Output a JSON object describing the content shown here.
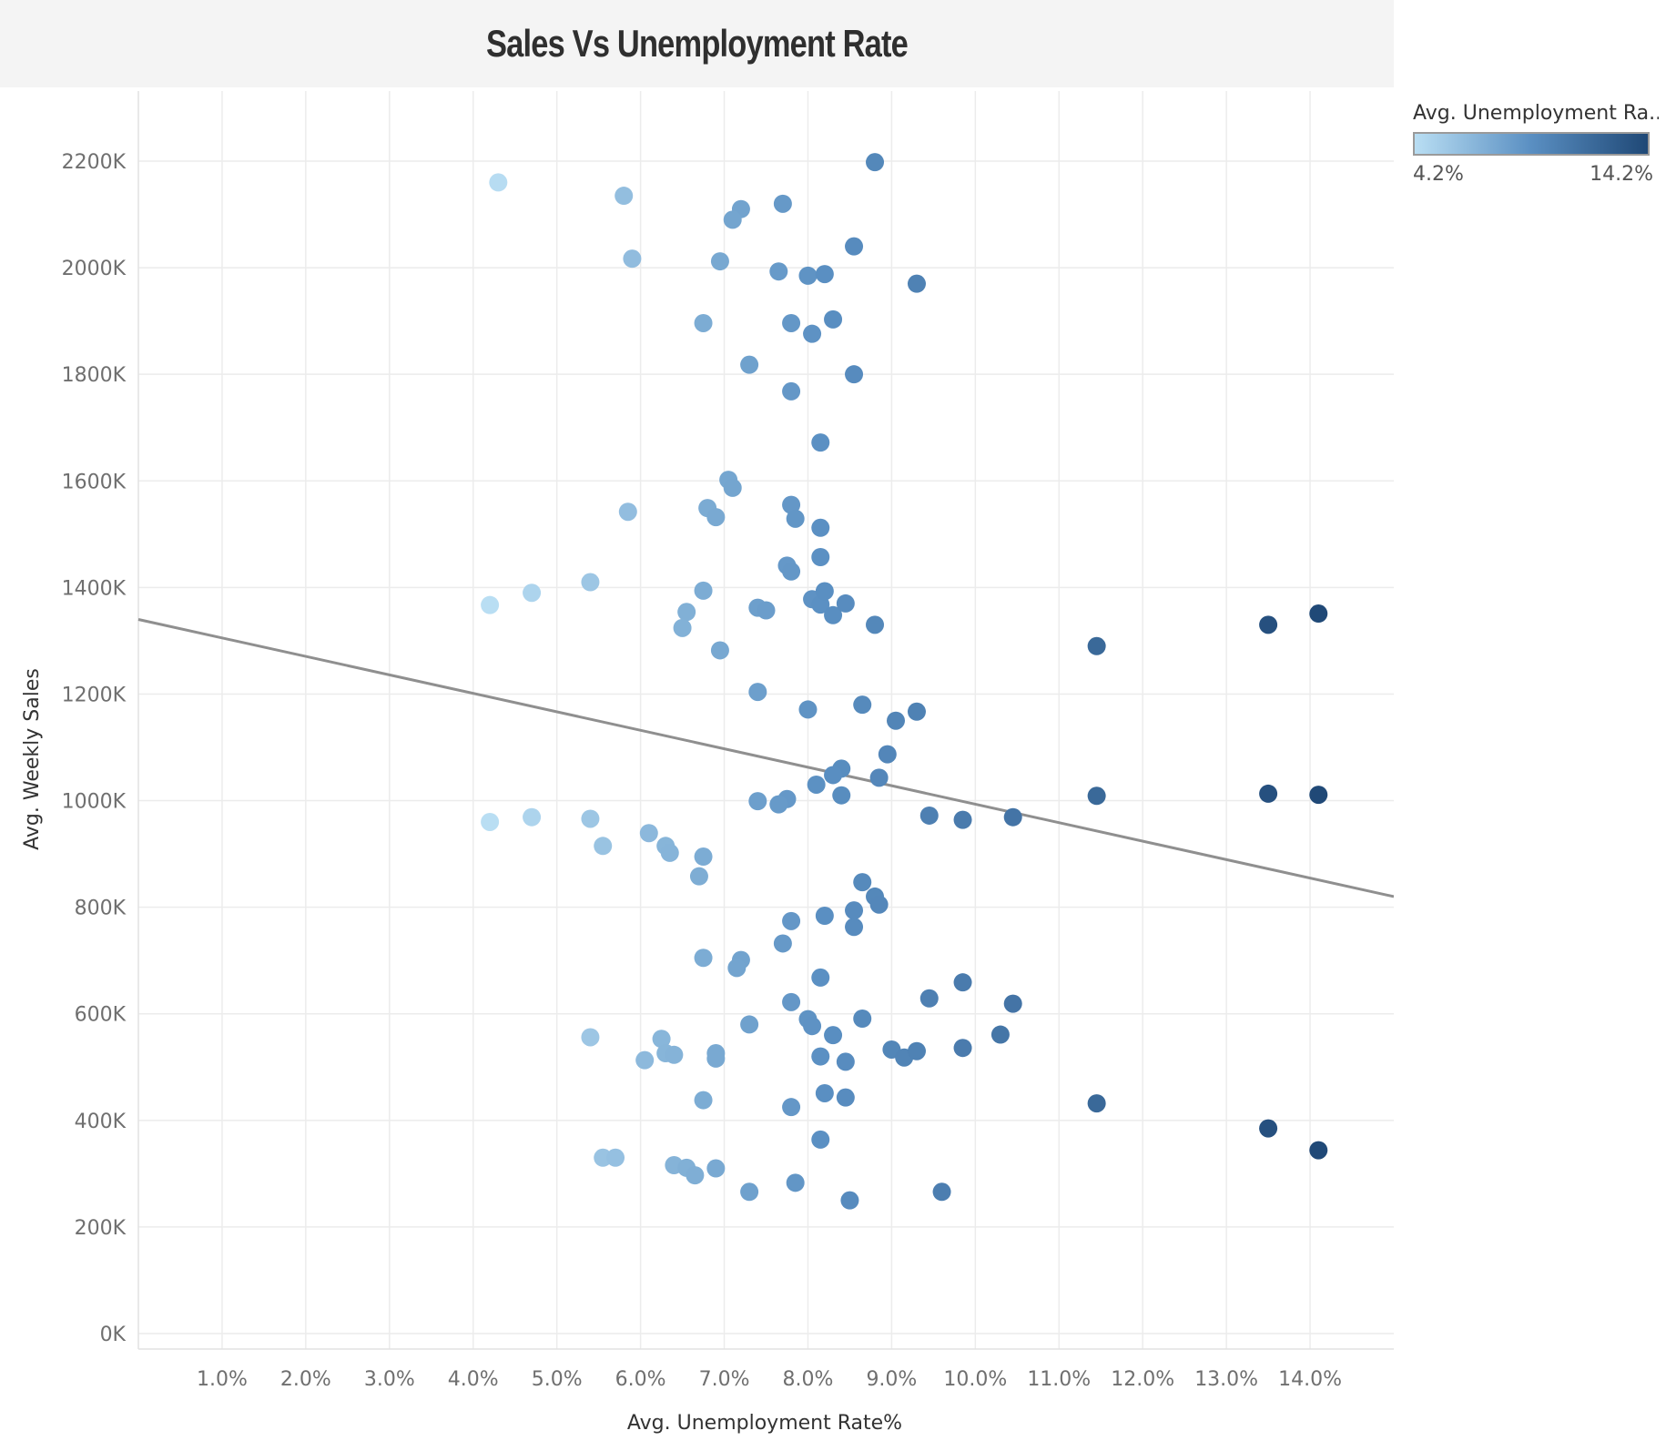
{
  "title": "Sales Vs Unemployment Rate",
  "legend": {
    "title": "Avg. Unemployment Ra..",
    "min_label": "4.2%",
    "max_label": "14.2%",
    "color_low": "#b9def3",
    "color_mid": "#5a8fc2",
    "color_high": "#1f4876"
  },
  "chart_data": {
    "type": "scatter",
    "title": "Sales Vs Unemployment Rate",
    "xlabel": "Avg. Unemployment Rate%",
    "ylabel": "Avg. Weekly Sales",
    "xlim": [
      0,
      15
    ],
    "ylim": [
      0,
      2300000
    ],
    "x_ticks": [
      1,
      2,
      3,
      4,
      5,
      6,
      7,
      8,
      9,
      10,
      11,
      12,
      13,
      14
    ],
    "x_tick_labels": [
      "1.0%",
      "2.0%",
      "3.0%",
      "4.0%",
      "5.0%",
      "6.0%",
      "7.0%",
      "8.0%",
      "9.0%",
      "10.0%",
      "11.0%",
      "12.0%",
      "13.0%",
      "14.0%"
    ],
    "y_ticks": [
      0,
      200000,
      400000,
      600000,
      800000,
      1000000,
      1200000,
      1400000,
      1600000,
      1800000,
      2000000,
      2200000
    ],
    "y_tick_labels": [
      "0K",
      "200K",
      "400K",
      "600K",
      "800K",
      "1000K",
      "1200K",
      "1400K",
      "1600K",
      "1800K",
      "2000K",
      "2200K"
    ],
    "grid": true,
    "legend_position": "top-right",
    "color_encoding": "Avg. Unemployment Rate",
    "trend_line": {
      "x": [
        0,
        15
      ],
      "y": [
        1340000,
        820000
      ],
      "color": "#8f8f8f"
    },
    "points": [
      [
        4.3,
        2160000
      ],
      [
        5.8,
        2135000
      ],
      [
        7.2,
        2110000
      ],
      [
        7.1,
        2090000
      ],
      [
        7.7,
        2120000
      ],
      [
        8.8,
        2198000
      ],
      [
        5.9,
        2017000
      ],
      [
        6.95,
        2012000
      ],
      [
        7.65,
        1993000
      ],
      [
        8.0,
        1985000
      ],
      [
        8.2,
        1988000
      ],
      [
        8.55,
        2040000
      ],
      [
        9.3,
        1970000
      ],
      [
        6.75,
        1896000
      ],
      [
        7.8,
        1896000
      ],
      [
        8.05,
        1876000
      ],
      [
        8.3,
        1903000
      ],
      [
        7.3,
        1818000
      ],
      [
        8.55,
        1800000
      ],
      [
        7.8,
        1768000
      ],
      [
        8.15,
        1672000
      ],
      [
        7.05,
        1602000
      ],
      [
        7.1,
        1587000
      ],
      [
        5.85,
        1542000
      ],
      [
        6.8,
        1549000
      ],
      [
        6.9,
        1532000
      ],
      [
        7.8,
        1555000
      ],
      [
        7.85,
        1529000
      ],
      [
        8.15,
        1512000
      ],
      [
        8.15,
        1457000
      ],
      [
        7.75,
        1441000
      ],
      [
        7.8,
        1430000
      ],
      [
        5.4,
        1410000
      ],
      [
        4.7,
        1390000
      ],
      [
        4.2,
        1367000
      ],
      [
        6.75,
        1394000
      ],
      [
        6.55,
        1354000
      ],
      [
        6.5,
        1324000
      ],
      [
        6.95,
        1282000
      ],
      [
        7.4,
        1362000
      ],
      [
        7.5,
        1357000
      ],
      [
        8.05,
        1378000
      ],
      [
        8.15,
        1368000
      ],
      [
        8.2,
        1393000
      ],
      [
        8.3,
        1348000
      ],
      [
        8.45,
        1370000
      ],
      [
        8.8,
        1330000
      ],
      [
        11.45,
        1290000
      ],
      [
        13.5,
        1330000
      ],
      [
        14.1,
        1351000
      ],
      [
        7.4,
        1204000
      ],
      [
        8.0,
        1171000
      ],
      [
        8.65,
        1180000
      ],
      [
        9.05,
        1150000
      ],
      [
        9.3,
        1167000
      ],
      [
        8.95,
        1087000
      ],
      [
        8.4,
        1060000
      ],
      [
        8.3,
        1048000
      ],
      [
        8.85,
        1043000
      ],
      [
        8.1,
        1030000
      ],
      [
        7.75,
        1003000
      ],
      [
        7.4,
        999000
      ],
      [
        7.65,
        993000
      ],
      [
        8.4,
        1010000
      ],
      [
        9.45,
        972000
      ],
      [
        9.85,
        964000
      ],
      [
        10.45,
        969000
      ],
      [
        11.45,
        1009000
      ],
      [
        13.5,
        1013000
      ],
      [
        14.1,
        1011000
      ],
      [
        4.2,
        960000
      ],
      [
        4.7,
        969000
      ],
      [
        5.4,
        966000
      ],
      [
        5.55,
        915000
      ],
      [
        6.1,
        939000
      ],
      [
        6.3,
        915000
      ],
      [
        6.35,
        902000
      ],
      [
        6.75,
        895000
      ],
      [
        6.7,
        858000
      ],
      [
        8.65,
        847000
      ],
      [
        8.8,
        820000
      ],
      [
        8.85,
        805000
      ],
      [
        8.55,
        794000
      ],
      [
        8.2,
        784000
      ],
      [
        7.8,
        774000
      ],
      [
        8.55,
        763000
      ],
      [
        7.7,
        732000
      ],
      [
        6.75,
        705000
      ],
      [
        7.2,
        701000
      ],
      [
        7.15,
        686000
      ],
      [
        8.15,
        668000
      ],
      [
        9.85,
        659000
      ],
      [
        9.45,
        629000
      ],
      [
        10.45,
        619000
      ],
      [
        7.8,
        622000
      ],
      [
        8.65,
        591000
      ],
      [
        8.0,
        590000
      ],
      [
        8.05,
        577000
      ],
      [
        7.3,
        580000
      ],
      [
        8.3,
        560000
      ],
      [
        10.3,
        561000
      ],
      [
        5.4,
        556000
      ],
      [
        6.25,
        553000
      ],
      [
        6.3,
        526000
      ],
      [
        6.4,
        523000
      ],
      [
        6.05,
        513000
      ],
      [
        6.9,
        526000
      ],
      [
        6.9,
        516000
      ],
      [
        8.15,
        520000
      ],
      [
        8.45,
        510000
      ],
      [
        9.0,
        533000
      ],
      [
        9.15,
        518000
      ],
      [
        9.3,
        530000
      ],
      [
        9.85,
        536000
      ],
      [
        6.75,
        438000
      ],
      [
        7.8,
        425000
      ],
      [
        8.2,
        451000
      ],
      [
        8.45,
        443000
      ],
      [
        11.45,
        432000
      ],
      [
        8.15,
        364000
      ],
      [
        13.5,
        385000
      ],
      [
        14.1,
        344000
      ],
      [
        5.55,
        330000
      ],
      [
        5.7,
        330000
      ],
      [
        6.4,
        316000
      ],
      [
        6.55,
        311000
      ],
      [
        6.65,
        297000
      ],
      [
        6.9,
        310000
      ],
      [
        7.3,
        266000
      ],
      [
        7.85,
        283000
      ],
      [
        8.5,
        250000
      ],
      [
        9.6,
        266000
      ]
    ]
  }
}
